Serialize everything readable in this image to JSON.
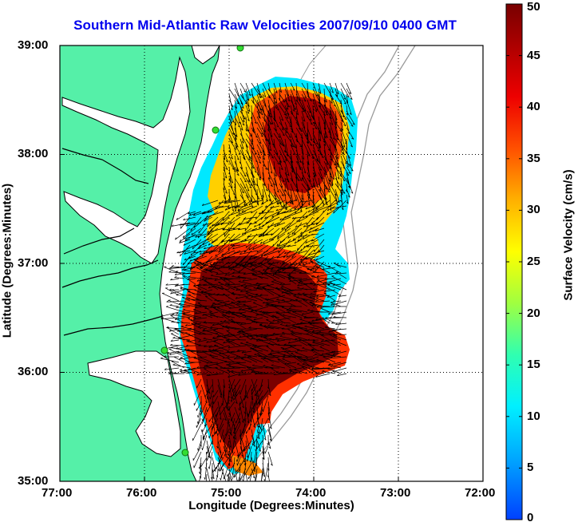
{
  "title": "Southern Mid-Atlantic Raw Velocities 2007/09/10 0400 GMT",
  "x_axis_label": "Longitude (Degrees:Minutes)",
  "y_axis_label": "Latitude (Degrees:Minutes)",
  "colorbar_label": "Surface Velocity (cm/s)",
  "x_ticks": [
    "77:00",
    "76:00",
    "75:00",
    "74:00",
    "73:00",
    "72:00"
  ],
  "y_ticks": [
    "39:00",
    "38:00",
    "37:00",
    "36:00",
    "35:00"
  ],
  "colorbar_ticks": [
    "50",
    "45",
    "40",
    "35",
    "30",
    "25",
    "20",
    "15",
    "10",
    "5",
    "0"
  ],
  "map_extent": {
    "lon_west": -77,
    "lon_east": -72,
    "lat_south": 35,
    "lat_north": 39
  },
  "colorbar_range": [
    0,
    50
  ],
  "colors": {
    "title": "#0000ee",
    "land": "#55f0a8",
    "coastline": "#000000",
    "bathymetry": "#9a9a9a",
    "station_marker": "#33dd33",
    "grid": "#000000",
    "vectors": "#000000"
  }
}
